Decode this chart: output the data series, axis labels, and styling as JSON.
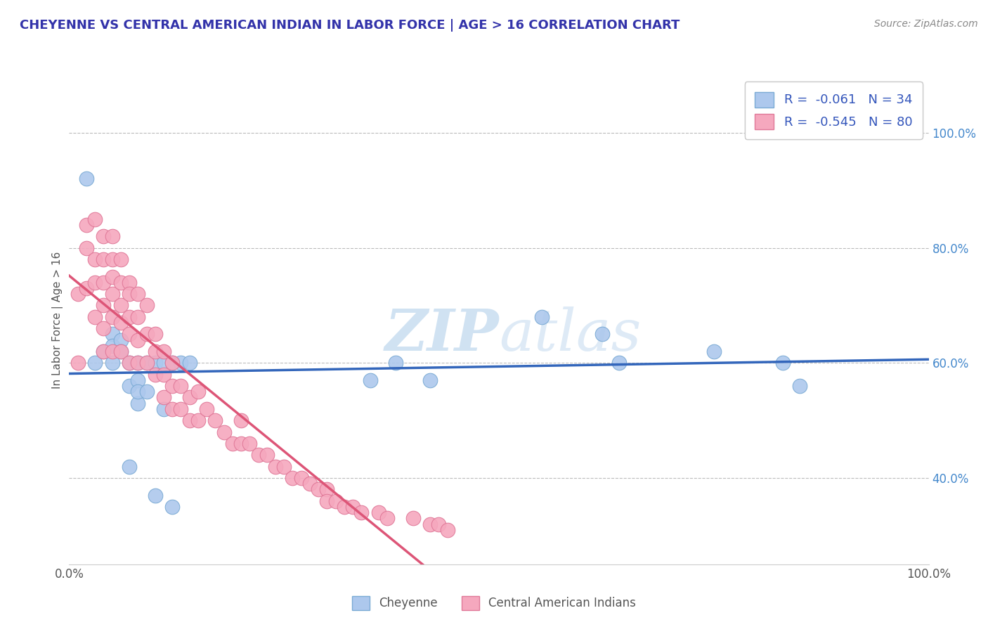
{
  "title": "CHEYENNE VS CENTRAL AMERICAN INDIAN IN LABOR FORCE | AGE > 16 CORRELATION CHART",
  "source_text": "Source: ZipAtlas.com",
  "ylabel": "In Labor Force | Age > 16",
  "xlim": [
    0.0,
    1.0
  ],
  "ylim": [
    0.25,
    1.1
  ],
  "cheyenne_color": "#adc8ed",
  "cheyenne_edge": "#7aaad4",
  "central_color": "#f5a8be",
  "central_edge": "#e07898",
  "cheyenne_R": -0.061,
  "cheyenne_N": 34,
  "central_R": -0.545,
  "central_N": 80,
  "cheyenne_line_color": "#3366bb",
  "central_line_color": "#dd5577",
  "watermark_color": "#c8ddf0",
  "background_color": "#ffffff",
  "grid_color": "#bbbbbb",
  "cheyenne_x": [
    0.02,
    0.03,
    0.04,
    0.05,
    0.05,
    0.05,
    0.06,
    0.06,
    0.07,
    0.07,
    0.07,
    0.08,
    0.08,
    0.08,
    0.08,
    0.09,
    0.09,
    0.1,
    0.1,
    0.11,
    0.11,
    0.12,
    0.12,
    0.13,
    0.14,
    0.35,
    0.38,
    0.42,
    0.55,
    0.62,
    0.64,
    0.75,
    0.83,
    0.85
  ],
  "cheyenne_y": [
    0.92,
    0.6,
    0.62,
    0.65,
    0.63,
    0.6,
    0.64,
    0.62,
    0.6,
    0.56,
    0.42,
    0.57,
    0.6,
    0.53,
    0.55,
    0.6,
    0.55,
    0.6,
    0.37,
    0.6,
    0.52,
    0.6,
    0.35,
    0.6,
    0.6,
    0.57,
    0.6,
    0.57,
    0.68,
    0.65,
    0.6,
    0.62,
    0.6,
    0.56
  ],
  "central_x": [
    0.01,
    0.01,
    0.02,
    0.02,
    0.02,
    0.03,
    0.03,
    0.03,
    0.03,
    0.04,
    0.04,
    0.04,
    0.04,
    0.04,
    0.04,
    0.05,
    0.05,
    0.05,
    0.05,
    0.05,
    0.05,
    0.06,
    0.06,
    0.06,
    0.06,
    0.06,
    0.07,
    0.07,
    0.07,
    0.07,
    0.07,
    0.08,
    0.08,
    0.08,
    0.08,
    0.09,
    0.09,
    0.09,
    0.1,
    0.1,
    0.1,
    0.11,
    0.11,
    0.11,
    0.12,
    0.12,
    0.12,
    0.13,
    0.13,
    0.14,
    0.14,
    0.15,
    0.15,
    0.16,
    0.17,
    0.18,
    0.19,
    0.2,
    0.2,
    0.21,
    0.22,
    0.23,
    0.24,
    0.25,
    0.26,
    0.27,
    0.28,
    0.29,
    0.3,
    0.3,
    0.31,
    0.32,
    0.33,
    0.34,
    0.36,
    0.37,
    0.4,
    0.42,
    0.43,
    0.44
  ],
  "central_y": [
    0.72,
    0.6,
    0.84,
    0.8,
    0.73,
    0.85,
    0.78,
    0.74,
    0.68,
    0.82,
    0.78,
    0.74,
    0.7,
    0.66,
    0.62,
    0.82,
    0.78,
    0.75,
    0.72,
    0.68,
    0.62,
    0.78,
    0.74,
    0.7,
    0.67,
    0.62,
    0.74,
    0.72,
    0.68,
    0.65,
    0.6,
    0.72,
    0.68,
    0.64,
    0.6,
    0.7,
    0.65,
    0.6,
    0.65,
    0.62,
    0.58,
    0.62,
    0.58,
    0.54,
    0.6,
    0.56,
    0.52,
    0.56,
    0.52,
    0.54,
    0.5,
    0.55,
    0.5,
    0.52,
    0.5,
    0.48,
    0.46,
    0.5,
    0.46,
    0.46,
    0.44,
    0.44,
    0.42,
    0.42,
    0.4,
    0.4,
    0.39,
    0.38,
    0.38,
    0.36,
    0.36,
    0.35,
    0.35,
    0.34,
    0.34,
    0.33,
    0.33,
    0.32,
    0.32,
    0.31
  ],
  "yticks": [
    0.4,
    0.6,
    0.8,
    1.0
  ],
  "ytick_labels": [
    "40.0%",
    "60.0%",
    "80.0%",
    "100.0%"
  ],
  "xtick_left_label": "0.0%",
  "xtick_right_label": "100.0%"
}
